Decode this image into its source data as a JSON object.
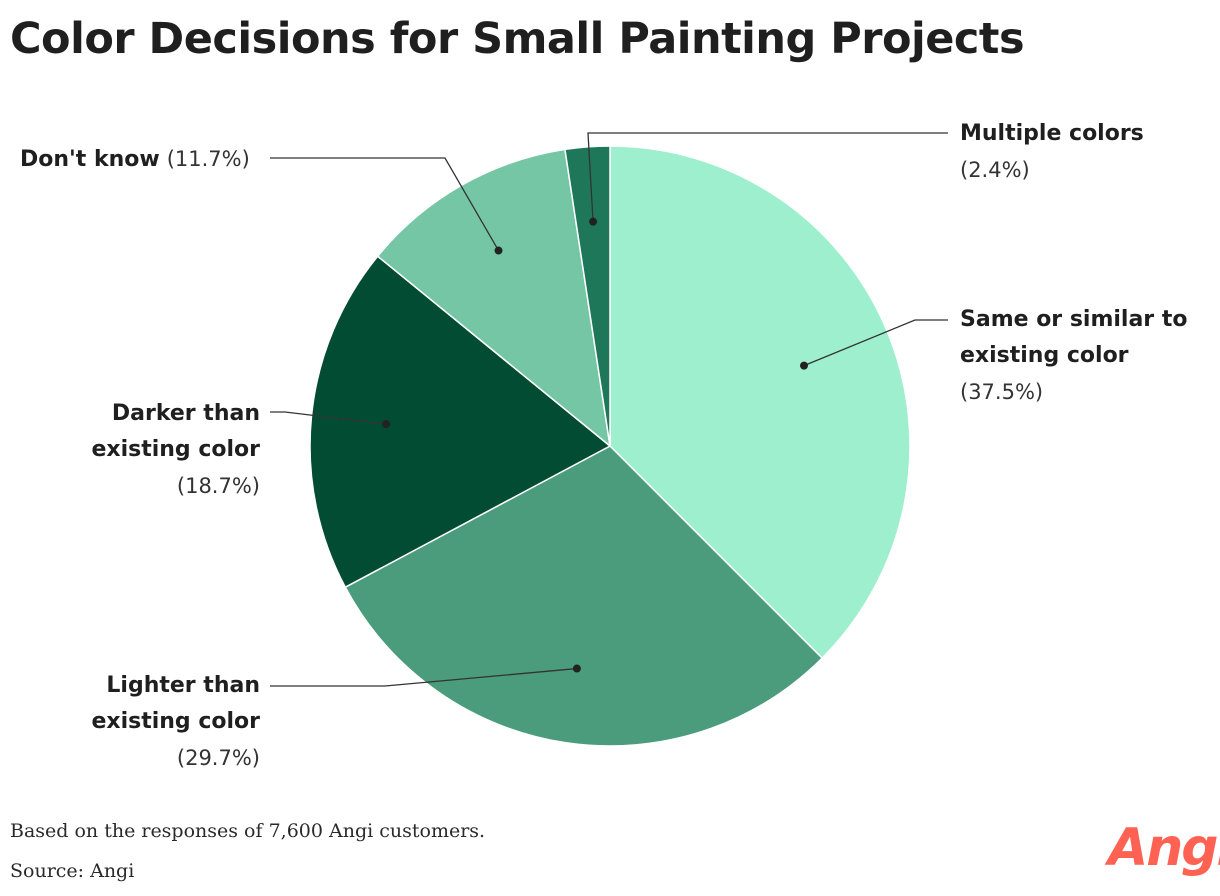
{
  "title": "Color Decisions for Small Painting Projects",
  "chart_data": {
    "type": "pie",
    "title": "Color Decisions for Small Painting Projects",
    "slices": [
      {
        "label": "Same or similar to existing color",
        "value": 37.5,
        "value_label": "(37.5%)",
        "color": "#9eefcd"
      },
      {
        "label": "Lighter than existing color",
        "value": 29.7,
        "value_label": "(29.7%)",
        "color": "#4b9c7d"
      },
      {
        "label": "Darker than existing color",
        "value": 18.7,
        "value_label": "(18.7%)",
        "color": "#024c34"
      },
      {
        "label": "Don't know",
        "value": 11.7,
        "value_label": "(11.7%)",
        "color": "#75c6a5"
      },
      {
        "label": "Multiple colors",
        "value": 2.4,
        "value_label": "(2.4%)",
        "color": "#1f775a"
      }
    ]
  },
  "labels": {
    "same": {
      "line1": "Same or similar to",
      "line2": "existing color",
      "pct": "(37.5%)"
    },
    "lighter": {
      "line1": "Lighter than",
      "line2": "existing color",
      "pct": "(29.7%)"
    },
    "darker": {
      "line1": "Darker than",
      "line2": "existing color",
      "pct": "(18.7%)"
    },
    "dontknow": {
      "name": "Don't know",
      "pct": "(11.7%)"
    },
    "multiple": {
      "name": "Multiple colors",
      "pct": "(2.4%)"
    }
  },
  "footnote": "Based on the responses of 7,600 Angi customers.",
  "source": "Source: Angi",
  "logo": "Angi"
}
